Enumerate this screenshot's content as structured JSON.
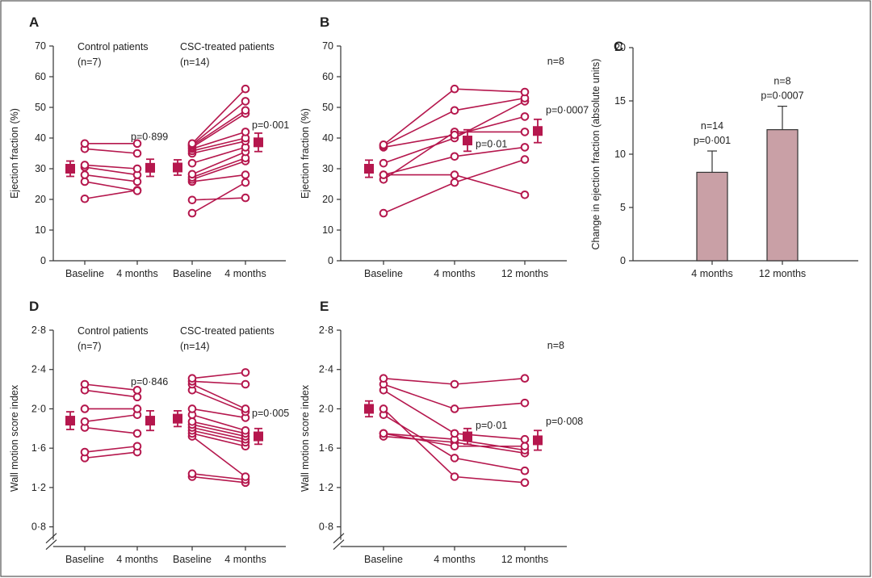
{
  "colors": {
    "accent": "#b5174d",
    "bar_fill": "#c9a0a6",
    "axis": "#333333",
    "frame": "#555555"
  },
  "chart_data": [
    {
      "id": "A",
      "type": "scatter",
      "letter": "A",
      "ylabel": "Ejection fraction (%)",
      "ylim": [
        0,
        70
      ],
      "yticks": [
        "0",
        "10",
        "20",
        "30",
        "40",
        "50",
        "60",
        "70"
      ],
      "categories": [
        "Baseline",
        "4 months",
        "Baseline",
        "4 months"
      ],
      "groups": [
        {
          "label": "Control patients",
          "n_label": "(n=7)",
          "from": 0,
          "to": 1,
          "patients": [
            [
              20.2,
              23
            ],
            [
              25.8,
              22.8
            ],
            [
              28,
              25.8
            ],
            [
              30.5,
              28
            ],
            [
              31.2,
              30
            ],
            [
              36.5,
              35
            ],
            [
              38.2,
              38.2
            ]
          ],
          "baseline_mean": [
            30,
            2.5
          ],
          "followup_mean": [
            30.3,
            2.8
          ],
          "p": "p=0·899"
        },
        {
          "label": "CSC-treated patients",
          "n_label": "(n=14)",
          "from": 2,
          "to": 3,
          "patients": [
            [
              15.5,
              25.5
            ],
            [
              19.8,
              20.5
            ],
            [
              25.8,
              28
            ],
            [
              26.5,
              32.5
            ],
            [
              27.2,
              33.5
            ],
            [
              28.2,
              35.5
            ],
            [
              31.8,
              37
            ],
            [
              35,
              39
            ],
            [
              35.8,
              40
            ],
            [
              36.5,
              42
            ],
            [
              37,
              48
            ],
            [
              37.5,
              49
            ],
            [
              37.8,
              52
            ],
            [
              38.2,
              56
            ]
          ],
          "baseline_mean": [
            30.4,
            2.5
          ],
          "followup_mean": [
            38.6,
            3
          ],
          "p": "p=0·001"
        }
      ]
    },
    {
      "id": "B",
      "type": "scatter",
      "letter": "B",
      "ylabel": "Ejection fraction (%)",
      "ylim": [
        0,
        70
      ],
      "yticks": [
        "0",
        "10",
        "20",
        "30",
        "40",
        "50",
        "60",
        "70"
      ],
      "categories": [
        "Baseline",
        "4 months",
        "12 months"
      ],
      "n_label": "n=8",
      "patients": [
        [
          15.5,
          25.5,
          33
        ],
        [
          26.5,
          42,
          42
        ],
        [
          28,
          28,
          21.5
        ],
        [
          28,
          34,
          37
        ],
        [
          31.8,
          40,
          52
        ],
        [
          37,
          41,
          47
        ],
        [
          37.5,
          49,
          53
        ],
        [
          37.8,
          56,
          55
        ]
      ],
      "means": [
        [
          30,
          2.8
        ],
        [
          39.2,
          3.5
        ],
        [
          42.3,
          3.8
        ]
      ],
      "annotations": [
        "p=0·01",
        "p=0·0007"
      ]
    },
    {
      "id": "C",
      "type": "bar",
      "letter": "C",
      "ylabel": "Change in ejection fraction (absolute units)",
      "ylim": [
        0,
        20
      ],
      "yticks": [
        "0",
        "5",
        "10",
        "15",
        "20"
      ],
      "categories": [
        "4 months",
        "12 months"
      ],
      "values": [
        8.3,
        12.3
      ],
      "errors": [
        2.0,
        2.2
      ],
      "labels": [
        [
          "n=14",
          "p=0·001"
        ],
        [
          "n=8",
          "p=0·0007"
        ]
      ]
    },
    {
      "id": "D",
      "type": "scatter",
      "letter": "D",
      "ylabel": "Wall motion score index",
      "ylim": [
        0.8,
        2.8
      ],
      "yticks": [
        "0·8",
        "1·2",
        "1·6",
        "2·0",
        "2·4",
        "2·8"
      ],
      "categories": [
        "Baseline",
        "4 months",
        "Baseline",
        "4 months"
      ],
      "groups": [
        {
          "label": "Control patients",
          "n_label": "(n=7)",
          "from": 0,
          "to": 1,
          "patients": [
            [
              1.5,
              1.56
            ],
            [
              1.56,
              1.62
            ],
            [
              1.81,
              1.75
            ],
            [
              1.87,
              1.94
            ],
            [
              2.0,
              2.0
            ],
            [
              2.19,
              2.12
            ],
            [
              2.25,
              2.19
            ]
          ],
          "baseline_mean": [
            1.88,
            0.09
          ],
          "followup_mean": [
            1.88,
            0.1
          ],
          "p": "p=0·846"
        },
        {
          "label": "CSC-treated patients",
          "n_label": "(n=14)",
          "from": 2,
          "to": 3,
          "patients": [
            [
              1.31,
              1.25
            ],
            [
              1.34,
              1.28
            ],
            [
              1.72,
              1.31
            ],
            [
              1.75,
              1.62
            ],
            [
              1.78,
              1.66
            ],
            [
              1.81,
              1.69
            ],
            [
              1.84,
              1.72
            ],
            [
              1.87,
              1.75
            ],
            [
              1.94,
              1.78
            ],
            [
              2.0,
              1.91
            ],
            [
              2.19,
              1.97
            ],
            [
              2.25,
              2.0
            ],
            [
              2.28,
              2.25
            ],
            [
              2.31,
              2.37
            ]
          ],
          "baseline_mean": [
            1.9,
            0.08
          ],
          "followup_mean": [
            1.72,
            0.08
          ],
          "p": "p=0·005"
        }
      ]
    },
    {
      "id": "E",
      "type": "scatter",
      "letter": "E",
      "ylabel": "Wall motion score index",
      "ylim": [
        0.8,
        2.8
      ],
      "yticks": [
        "0·8",
        "1·2",
        "1·6",
        "2·0",
        "2·4",
        "2·8"
      ],
      "categories": [
        "Baseline",
        "4 months",
        "12 months"
      ],
      "n_label": "n=8",
      "patients": [
        [
          1.72,
          1.66,
          1.55
        ],
        [
          1.75,
          1.69,
          1.58
        ],
        [
          1.75,
          1.62,
          1.62
        ],
        [
          1.94,
          1.5,
          1.37
        ],
        [
          2.0,
          1.31,
          1.25
        ],
        [
          2.19,
          1.75,
          1.69
        ],
        [
          2.25,
          2.0,
          2.06
        ],
        [
          2.31,
          2.25,
          2.31
        ]
      ],
      "means": [
        [
          2.0,
          0.08
        ],
        [
          1.72,
          0.08
        ],
        [
          1.68,
          0.1
        ]
      ],
      "annotations": [
        "p=0·01",
        "p=0·008"
      ]
    }
  ]
}
